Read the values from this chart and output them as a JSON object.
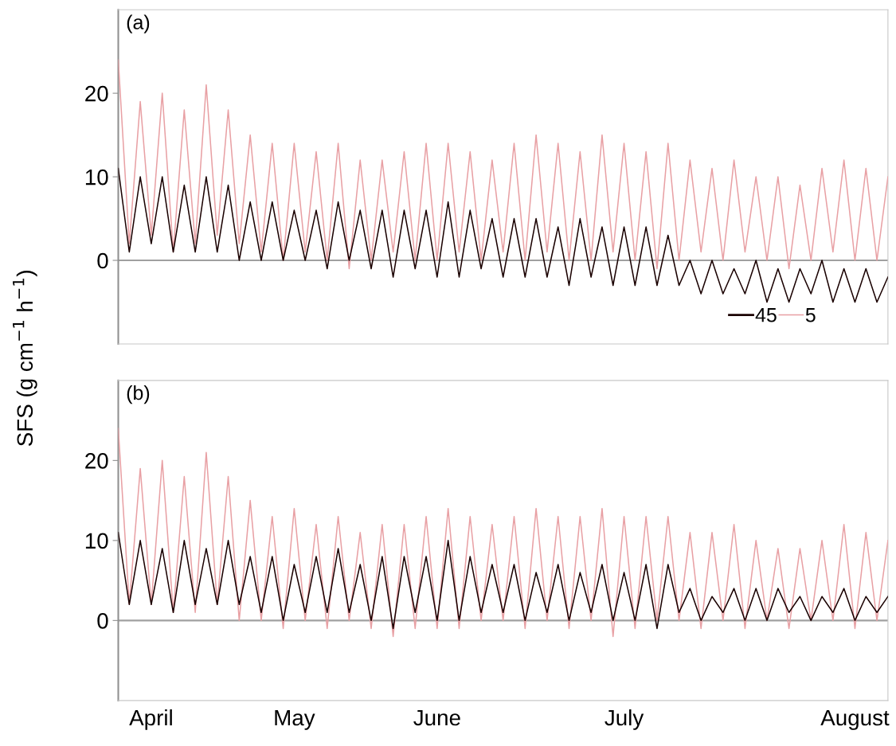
{
  "chart_data": [
    {
      "type": "line",
      "ylabel": "SFS (g cm$^{−1}$ h$^{−1}$)",
      "annotations": [
        "(a)"
      ],
      "ylim": [
        -10,
        30
      ],
      "yticks": [
        0,
        10,
        20
      ],
      "tick_labels": "y",
      "legend": "bottom right",
      "grid": false,
      "ref_lines": [
        {
          "axis": "y",
          "value": 0,
          "color": "#a0a0a0"
        }
      ],
      "categories": [
        null,
        null,
        null,
        null,
        null,
        null,
        null,
        null,
        null,
        null,
        null,
        null,
        null,
        null,
        null,
        null,
        null,
        null,
        null,
        null,
        null,
        null,
        null,
        null,
        null,
        null,
        null,
        null,
        null,
        null,
        null,
        null,
        null,
        null,
        null,
        null,
        null,
        null,
        null,
        null,
        null,
        null,
        null,
        null,
        null,
        null,
        null,
        null,
        null,
        null,
        null,
        null,
        null,
        null,
        null,
        null,
        null,
        null,
        null,
        null,
        null,
        null,
        null,
        null,
        null,
        null,
        null,
        null,
        null,
        null,
        null
      ],
      "series": [
        {
          "name": "45",
          "color": "#1a0000",
          "values": [
            11,
            1,
            10,
            2,
            10,
            1,
            9,
            1,
            10,
            1,
            9,
            0,
            7,
            0,
            7,
            0,
            6,
            0,
            6,
            -1,
            7,
            0,
            6,
            -1,
            6,
            -2,
            6,
            -1,
            6,
            -2,
            7,
            -2,
            6,
            -1,
            5,
            -2,
            5,
            -2,
            5,
            -2,
            4,
            -3,
            5,
            -2,
            4,
            -3,
            4,
            -3,
            4,
            -3,
            3,
            -3,
            0,
            -4,
            0,
            -4,
            -1,
            -4,
            0,
            -5,
            -1,
            -5,
            -1,
            -4,
            0,
            -5,
            -1,
            -5,
            -1,
            -5,
            -2
          ]
        },
        {
          "name": "5",
          "color": "#e8a0a4",
          "values": [
            24,
            2,
            19,
            3,
            20,
            1,
            18,
            2,
            21,
            3,
            18,
            2,
            15,
            1,
            14,
            0,
            14,
            1,
            13,
            0,
            14,
            -1,
            12,
            0,
            12,
            1,
            13,
            0,
            14,
            0,
            14,
            1,
            13,
            0,
            12,
            1,
            14,
            0,
            15,
            1,
            14,
            0,
            13,
            0,
            15,
            1,
            14,
            0,
            13,
            -1,
            14,
            0,
            12,
            1,
            11,
            0,
            12,
            1,
            10,
            0,
            10,
            -1,
            9,
            0,
            11,
            1,
            12,
            0,
            11,
            0,
            10
          ]
        }
      ]
    },
    {
      "type": "line",
      "annotations": [
        "(b)"
      ],
      "ylim": [
        -10,
        30
      ],
      "yticks": [
        0,
        10,
        20
      ],
      "grid": false,
      "ref_lines": [
        {
          "axis": "y",
          "value": 0,
          "color": "#a0a0a0"
        }
      ],
      "categories": [
        null,
        null,
        null,
        "April",
        null,
        null,
        null,
        null,
        null,
        null,
        null,
        null,
        null,
        null,
        null,
        null,
        "May",
        null,
        null,
        null,
        null,
        null,
        null,
        null,
        null,
        null,
        null,
        null,
        null,
        "June",
        null,
        null,
        null,
        null,
        null,
        null,
        null,
        null,
        null,
        null,
        null,
        null,
        null,
        null,
        null,
        null,
        "July",
        null,
        null,
        null,
        null,
        null,
        null,
        null,
        null,
        null,
        null,
        null,
        null,
        null,
        null,
        null,
        null,
        null,
        null,
        null,
        null,
        "August",
        null,
        null,
        null
      ],
      "series": [
        {
          "color": "#1a0000",
          "values": [
            11,
            2,
            10,
            2,
            9,
            1,
            10,
            2,
            9,
            2,
            10,
            2,
            8,
            1,
            8,
            0,
            7,
            1,
            8,
            1,
            9,
            1,
            7,
            0,
            8,
            -1,
            8,
            1,
            8,
            0,
            10,
            0,
            8,
            1,
            7,
            1,
            7,
            0,
            6,
            1,
            7,
            0,
            6,
            1,
            7,
            0,
            6,
            0,
            7,
            -1,
            7,
            1,
            4,
            0,
            3,
            1,
            4,
            0,
            4,
            0,
            4,
            1,
            3,
            0,
            3,
            1,
            4,
            0,
            3,
            1,
            3
          ]
        },
        {
          "color": "#e8a0a4",
          "values": [
            24,
            2,
            19,
            2,
            20,
            1,
            18,
            1,
            21,
            2,
            18,
            0,
            15,
            0,
            13,
            -1,
            14,
            0,
            12,
            -1,
            13,
            0,
            11,
            -1,
            12,
            -2,
            12,
            -1,
            13,
            -1,
            14,
            -1,
            13,
            0,
            12,
            0,
            13,
            -1,
            14,
            0,
            13,
            -1,
            13,
            0,
            14,
            -2,
            13,
            -1,
            13,
            0,
            13,
            0,
            11,
            -1,
            11,
            0,
            12,
            -1,
            10,
            0,
            9,
            -1,
            9,
            0,
            10,
            0,
            12,
            -1,
            11,
            0,
            10
          ]
        }
      ]
    }
  ]
}
